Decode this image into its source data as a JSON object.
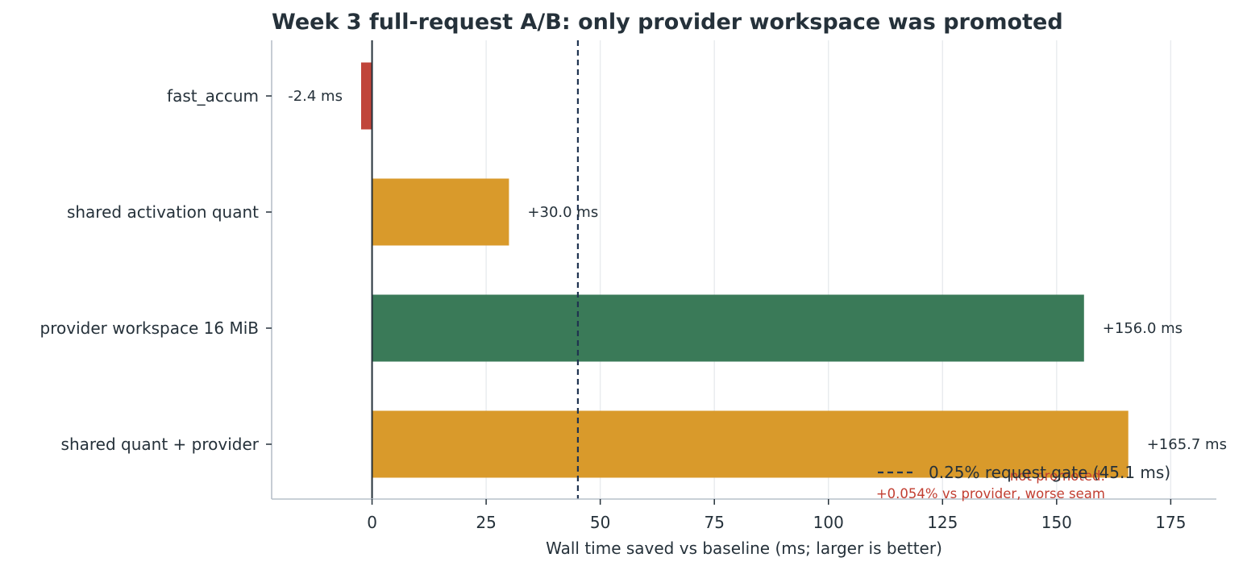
{
  "chart_data": {
    "type": "bar",
    "orientation": "horizontal",
    "title": "Week 3 full-request A/B: only provider workspace was promoted",
    "xlabel": "Wall time saved vs baseline (ms; larger is better)",
    "ylabel": "",
    "xlim": [
      -22,
      185
    ],
    "xticks": [
      0,
      25,
      50,
      75,
      100,
      125,
      150,
      175
    ],
    "grid": "vertical",
    "categories": [
      "fast_accum",
      "shared activation quant",
      "provider workspace 16 MiB",
      "shared quant + provider"
    ],
    "values": [
      -2.4,
      30.0,
      156.0,
      165.7
    ],
    "value_labels": [
      "-2.4 ms",
      "+30.0 ms",
      "+156.0 ms",
      "+165.7 ms"
    ],
    "colors": [
      "#c0453a",
      "#d99a2b",
      "#3a7a58",
      "#d99a2b"
    ],
    "reference_line": {
      "value": 45.1,
      "label": "0.25% request gate (45.1 ms)",
      "style": "dashed",
      "color": "#1f3350"
    },
    "legend": {
      "placement": "lower-right"
    },
    "annotations": [
      "not promoted:",
      "+0.054% vs provider, worse seam"
    ]
  }
}
